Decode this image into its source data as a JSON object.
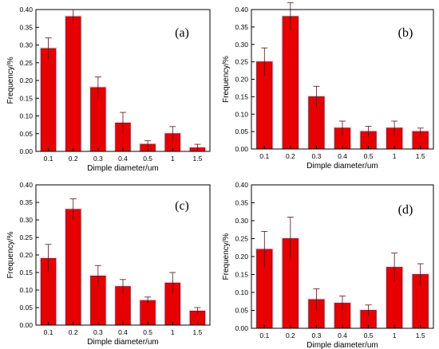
{
  "colors": {
    "bar": "#e60000",
    "bar_edge": "#7a1a1a",
    "halo": "#ffb3e6",
    "axis": "#000000"
  },
  "chart_data": [
    {
      "type": "bar",
      "panel_label": "(a)",
      "categories": [
        "0.1",
        "0.2",
        "0.3",
        "0.4",
        "0.5",
        "1",
        "1.5"
      ],
      "values": [
        0.29,
        0.38,
        0.18,
        0.08,
        0.02,
        0.05,
        0.01
      ],
      "errors": [
        0.03,
        0.02,
        0.03,
        0.03,
        0.01,
        0.02,
        0.01
      ],
      "xlabel": "Dimple diameter/um",
      "ylabel": "Frequency/%",
      "ylim": [
        0,
        0.4
      ],
      "yticks": [
        "0.00",
        "0.05",
        "0.10",
        "0.15",
        "0.20",
        "0.25",
        "0.30",
        "0.35",
        "0.40"
      ]
    },
    {
      "type": "bar",
      "panel_label": "(b)",
      "categories": [
        "0.1",
        "0.2",
        "0.3",
        "0.4",
        "0.5",
        "1",
        "1.5"
      ],
      "values": [
        0.25,
        0.38,
        0.15,
        0.06,
        0.05,
        0.06,
        0.05
      ],
      "errors": [
        0.04,
        0.04,
        0.03,
        0.02,
        0.015,
        0.02,
        0.01
      ],
      "xlabel": "Dimple diameter/um",
      "ylabel": "Frequency/%",
      "ylim": [
        0,
        0.4
      ],
      "yticks": [
        "0.00",
        "0.05",
        "0.10",
        "0.15",
        "0.20",
        "0.25",
        "0.30",
        "0.35",
        "0.40"
      ]
    },
    {
      "type": "bar",
      "panel_label": "(c)",
      "categories": [
        "0.1",
        "0.2",
        "0.3",
        "0.4",
        "0.5",
        "1",
        "1.5"
      ],
      "values": [
        0.19,
        0.33,
        0.14,
        0.11,
        0.07,
        0.12,
        0.04
      ],
      "errors": [
        0.04,
        0.03,
        0.03,
        0.02,
        0.01,
        0.03,
        0.01
      ],
      "xlabel": "Dimple diameter/um",
      "ylabel": "Frequency/%",
      "ylim": [
        0,
        0.4
      ],
      "yticks": [
        "0.00",
        "0.05",
        "0.10",
        "0.15",
        "0.20",
        "0.25",
        "0.30",
        "0.35",
        "0.40"
      ]
    },
    {
      "type": "bar",
      "panel_label": "(d)",
      "categories": [
        "0.1",
        "0.2",
        "0.3",
        "0.4",
        "0.5",
        "1",
        "1.5"
      ],
      "values": [
        0.22,
        0.25,
        0.08,
        0.07,
        0.05,
        0.17,
        0.15
      ],
      "errors": [
        0.05,
        0.06,
        0.03,
        0.02,
        0.015,
        0.04,
        0.03
      ],
      "xlabel": "Dimple diameter/um",
      "ylabel": "Frequency/%",
      "ylim": [
        0,
        0.4
      ],
      "yticks": [
        "0.00",
        "0.05",
        "0.10",
        "0.15",
        "0.20",
        "0.25",
        "0.30",
        "0.35",
        "0.40"
      ]
    }
  ]
}
